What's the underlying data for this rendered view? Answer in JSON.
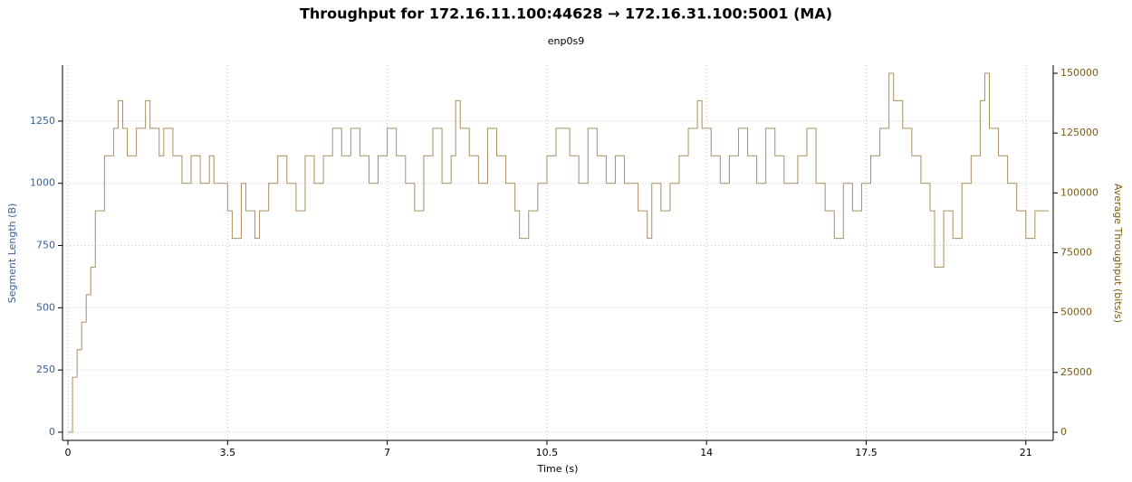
{
  "chart_data": {
    "type": "line",
    "step": true,
    "title": "Throughput for 172.16.11.100:44628 → 172.16.31.100:5001 (MA)",
    "subtitle": "enp0s9",
    "x_label": "Time (s)",
    "y_label": "Segment Length (B)",
    "y2_label": "Average Throughput (bits/s)",
    "xlim": [
      -0.12,
      21.6
    ],
    "xticks": [
      0,
      3.5,
      7,
      10.5,
      14,
      17.5,
      21
    ],
    "ylim": [
      -33,
      1475
    ],
    "yticks": [
      0,
      250,
      500,
      750,
      1000,
      1250
    ],
    "y2lim": [
      -3400,
      153400
    ],
    "y2ticks": [
      0,
      25000,
      50000,
      75000,
      100000,
      125000,
      150000
    ],
    "y_color": "#3a5f96",
    "y2_color": "#7a5c10",
    "grid": true,
    "x": [
      0,
      0.1,
      0.2,
      0.3,
      0.4,
      0.5,
      0.6,
      0.8,
      1.0,
      1.1,
      1.2,
      1.3,
      1.5,
      1.7,
      1.8,
      2.0,
      2.1,
      2.3,
      2.5,
      2.7,
      2.9,
      3.1,
      3.2,
      3.5,
      3.6,
      3.8,
      3.9,
      4.1,
      4.2,
      4.4,
      4.6,
      4.8,
      5.0,
      5.2,
      5.4,
      5.6,
      5.8,
      6.0,
      6.2,
      6.4,
      6.6,
      6.8,
      7.0,
      7.2,
      7.4,
      7.6,
      7.8,
      8.0,
      8.2,
      8.4,
      8.5,
      8.6,
      8.8,
      9.0,
      9.2,
      9.4,
      9.6,
      9.8,
      9.9,
      10.1,
      10.3,
      10.5,
      10.7,
      11.0,
      11.2,
      11.4,
      11.6,
      11.8,
      12.0,
      12.2,
      12.5,
      12.7,
      12.8,
      13.0,
      13.2,
      13.4,
      13.6,
      13.8,
      13.9,
      14.1,
      14.3,
      14.5,
      14.7,
      14.9,
      15.1,
      15.3,
      15.5,
      15.7,
      16.0,
      16.2,
      16.4,
      16.6,
      16.8,
      17.0,
      17.2,
      17.4,
      17.6,
      17.8,
      18.0,
      18.1,
      18.3,
      18.5,
      18.7,
      18.9,
      19.0,
      19.2,
      19.4,
      19.6,
      19.8,
      20.0,
      20.1,
      20.2,
      20.4,
      20.6,
      20.8,
      21.0,
      21.2,
      21.5
    ],
    "series": [
      {
        "name": "Average Throughput",
        "axis": "y2",
        "color": "#a89060",
        "values": [
          0,
          23000,
          34500,
          46000,
          57500,
          69000,
          92500,
          115500,
          127000,
          138500,
          127000,
          115500,
          127000,
          138500,
          127000,
          115500,
          127000,
          115500,
          104000,
          115500,
          104000,
          115500,
          104000,
          92500,
          81000,
          104000,
          92500,
          81000,
          92500,
          104000,
          115500,
          104000,
          92500,
          115500,
          104000,
          115500,
          127000,
          115500,
          127000,
          115500,
          104000,
          115500,
          127000,
          115500,
          104000,
          92500,
          115500,
          127000,
          104000,
          115500,
          138500,
          127000,
          115500,
          104000,
          127000,
          115500,
          104000,
          92500,
          81000,
          92500,
          104000,
          115500,
          127000,
          115500,
          104000,
          127000,
          115500,
          104000,
          115500,
          104000,
          92500,
          81000,
          104000,
          92500,
          104000,
          115500,
          127000,
          138500,
          127000,
          115500,
          104000,
          115500,
          127000,
          115500,
          104000,
          127000,
          115500,
          104000,
          115500,
          127000,
          104000,
          92500,
          81000,
          104000,
          92500,
          104000,
          115500,
          127000,
          150000,
          138500,
          127000,
          115500,
          104000,
          92500,
          69000,
          92500,
          81000,
          104000,
          115500,
          138500,
          150000,
          127000,
          115500,
          104000,
          92500,
          81000,
          92500,
          92500
        ]
      }
    ]
  }
}
